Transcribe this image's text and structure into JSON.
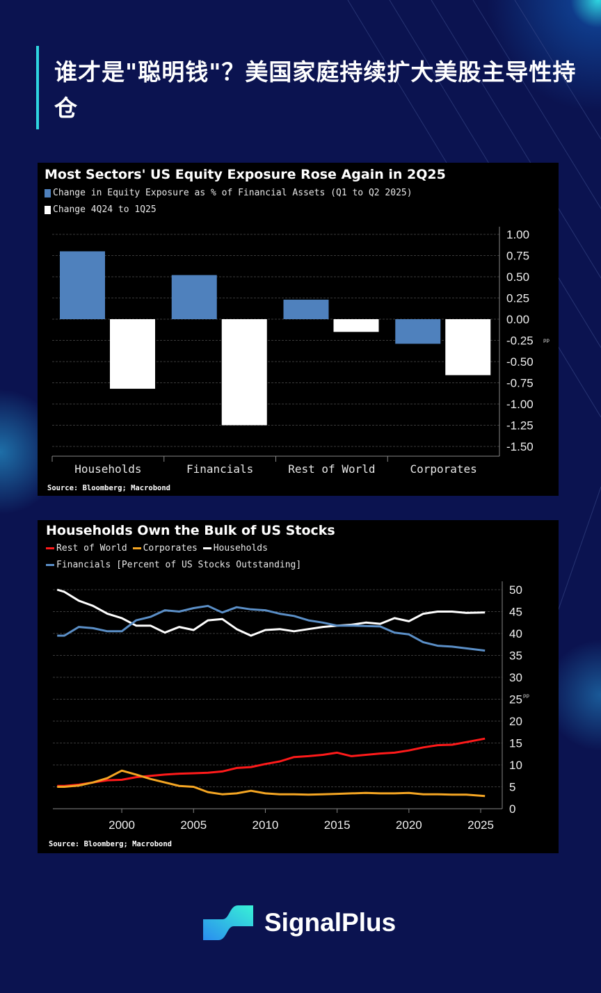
{
  "page_title": "谁才是\"聪明钱\"？美国家庭持续扩大美股主导性持仓",
  "brand": {
    "name": "SignalPlus",
    "accent": "#2fd6e0",
    "background": "#0b1350"
  },
  "chart_data": [
    {
      "type": "bar",
      "title": "Most Sectors' US Equity Exposure Rose Again in 2Q25",
      "categories": [
        "Households",
        "Financials",
        "Rest of World",
        "Corporates"
      ],
      "series": [
        {
          "name": "Change in Equity Exposure as % of Financial Assets (Q1 to Q2 2025)",
          "color": "#4f81bd",
          "values": [
            0.8,
            0.52,
            0.23,
            -0.29
          ]
        },
        {
          "name": "Change 4Q24 to 1Q25",
          "color": "#ffffff",
          "values": [
            -0.82,
            -1.25,
            -0.15,
            -0.66
          ]
        }
      ],
      "ylim": [
        -1.5,
        1.0
      ],
      "yticks": [
        "1.00",
        "0.75",
        "0.50",
        "0.25",
        "0.00",
        "-0.25",
        "-0.50",
        "-0.75",
        "-1.00",
        "-1.25",
        "-1.50"
      ],
      "y_unit": "pp",
      "grid": true,
      "legend_position": "top-left",
      "source": "Source: Bloomberg; Macrobond"
    },
    {
      "type": "line",
      "title": "Households Own the Bulk of US Stocks",
      "ylabel": "[Percent of US Stocks Outstanding]",
      "x": [
        1995.5,
        1996,
        1997,
        1998,
        1999,
        2000,
        2001,
        2002,
        2003,
        2004,
        2005,
        2006,
        2007,
        2008,
        2009,
        2010,
        2011,
        2012,
        2013,
        2014,
        2015,
        2016,
        2017,
        2018,
        2019,
        2020,
        2021,
        2022,
        2023,
        2024,
        2025.3
      ],
      "series": [
        {
          "name": "Rest of World",
          "color": "#ff1a1a",
          "values": [
            5.2,
            5.2,
            5.5,
            6.0,
            6.5,
            6.6,
            7.2,
            7.5,
            7.8,
            8.0,
            8.1,
            8.2,
            8.5,
            9.3,
            9.5,
            10.2,
            10.8,
            11.8,
            12.0,
            12.3,
            12.8,
            12.0,
            12.3,
            12.6,
            12.8,
            13.3,
            14.0,
            14.5,
            14.6,
            15.2,
            16.0
          ]
        },
        {
          "name": "Corporates",
          "color": "#f5a623",
          "values": [
            5.0,
            5.0,
            5.3,
            6.0,
            7.0,
            8.7,
            7.8,
            6.8,
            6.0,
            5.2,
            5.0,
            3.8,
            3.3,
            3.5,
            4.1,
            3.5,
            3.3,
            3.3,
            3.2,
            3.3,
            3.4,
            3.5,
            3.6,
            3.5,
            3.5,
            3.6,
            3.3,
            3.3,
            3.2,
            3.2,
            2.9
          ]
        },
        {
          "name": "Households",
          "color": "#ffffff",
          "values": [
            50.0,
            49.5,
            47.5,
            46.3,
            44.5,
            43.5,
            41.8,
            41.8,
            40.2,
            41.5,
            40.8,
            43.0,
            43.3,
            41.0,
            39.5,
            40.8,
            41.0,
            40.5,
            41.0,
            41.5,
            41.8,
            42.0,
            42.5,
            42.2,
            43.5,
            42.8,
            44.5,
            45.0,
            45.0,
            44.7,
            44.8
          ]
        },
        {
          "name": "Financials [Percent of US Stocks Outstanding]",
          "color": "#5b8fc7",
          "values": [
            39.5,
            39.5,
            41.5,
            41.2,
            40.5,
            40.5,
            43.0,
            43.8,
            45.3,
            45.0,
            45.8,
            46.3,
            44.8,
            46.0,
            45.5,
            45.3,
            44.5,
            44.0,
            43.0,
            42.5,
            41.8,
            41.8,
            41.7,
            41.6,
            40.2,
            39.8,
            38.0,
            37.2,
            37.0,
            36.6,
            36.1
          ]
        }
      ],
      "xlim": [
        1995.2,
        2026.5
      ],
      "xticks": [
        "2000",
        "2005",
        "2010",
        "2015",
        "2020",
        "2025"
      ],
      "ylim": [
        0,
        50
      ],
      "yticks": [
        "50",
        "45",
        "40",
        "35",
        "30",
        "25",
        "20",
        "15",
        "10",
        "5",
        "0"
      ],
      "y_unit": "pp",
      "grid": true,
      "legend_position": "top-left",
      "source": "Source: Bloomberg; Macrobond"
    }
  ]
}
